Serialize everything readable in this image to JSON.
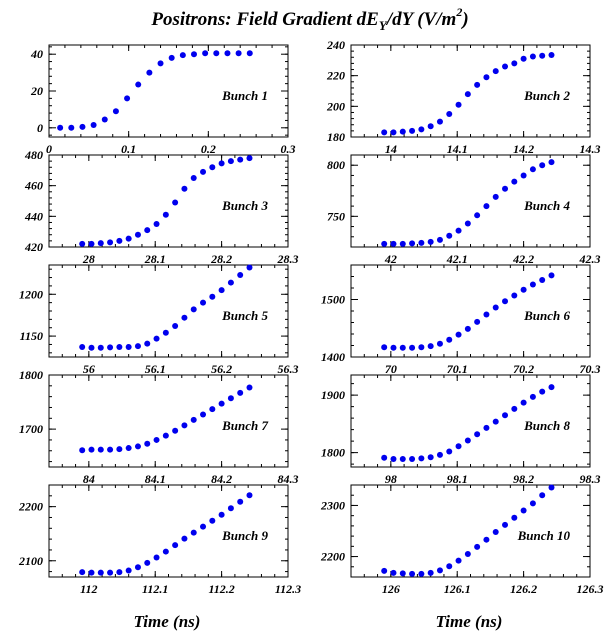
{
  "title_parts": {
    "main": "Positrons: Field Gradient dE",
    "sub": "Y",
    "mid": "/dY (V/m",
    "sup": "2",
    "end": ")"
  },
  "xlabel": "Time (ns)",
  "marker_color": "#0000ee",
  "chart_data": [
    {
      "type": "scatter",
      "label": "Bunch 1",
      "xlim": [
        0,
        0.3
      ],
      "ylim": [
        -5,
        45
      ],
      "xticks": [
        "0",
        "0.1",
        "0.2",
        "0.3"
      ],
      "xtick_values": [
        0,
        0.1,
        0.2,
        0.3
      ],
      "yticks": [
        "0",
        "20",
        "40"
      ],
      "ytick_values": [
        0,
        20,
        40
      ],
      "x": [
        0.014,
        0.028,
        0.042,
        0.056,
        0.07,
        0.084,
        0.098,
        0.112,
        0.126,
        0.14,
        0.154,
        0.168,
        0.182,
        0.196,
        0.21,
        0.224,
        0.238,
        0.252
      ],
      "y": [
        0,
        0,
        0.5,
        1.5,
        4.5,
        9,
        16,
        23.5,
        30,
        35,
        38,
        39.5,
        40,
        40.5,
        40.5,
        40.5,
        40.5,
        40.5
      ]
    },
    {
      "type": "scatter",
      "label": "Bunch 2",
      "xlim": [
        13.94,
        14.3
      ],
      "ylim": [
        180,
        240
      ],
      "xticks": [
        "14",
        "14.1",
        "14.2",
        "14.3"
      ],
      "xtick_values": [
        14,
        14.1,
        14.2,
        14.3
      ],
      "yticks": [
        "180",
        "200",
        "220",
        "240"
      ],
      "ytick_values": [
        180,
        200,
        220,
        240
      ],
      "x": [
        13.99,
        14.004,
        14.018,
        14.032,
        14.046,
        14.06,
        14.074,
        14.088,
        14.102,
        14.116,
        14.13,
        14.144,
        14.158,
        14.172,
        14.186,
        14.2,
        14.214,
        14.228,
        14.242
      ],
      "y": [
        183,
        183,
        183.5,
        184,
        185,
        187,
        190,
        195,
        201,
        208,
        214,
        219,
        223,
        226,
        228,
        231,
        232.5,
        233,
        233.5
      ]
    },
    {
      "type": "scatter",
      "label": "Bunch 3",
      "xlim": [
        27.94,
        28.3
      ],
      "ylim": [
        420,
        480
      ],
      "xticks": [
        "28",
        "28.1",
        "28.2",
        "28.3"
      ],
      "xtick_values": [
        28,
        28.1,
        28.2,
        28.3
      ],
      "yticks": [
        "420",
        "440",
        "460",
        "480"
      ],
      "ytick_values": [
        420,
        440,
        460,
        480
      ],
      "x": [
        27.99,
        28.004,
        28.018,
        28.032,
        28.046,
        28.06,
        28.074,
        28.088,
        28.102,
        28.116,
        28.13,
        28.144,
        28.158,
        28.172,
        28.186,
        28.2,
        28.214,
        28.228,
        28.242
      ],
      "y": [
        422,
        422,
        422.5,
        423,
        424,
        425.5,
        428,
        431,
        435,
        441,
        449,
        458,
        465,
        469,
        472,
        474.5,
        476,
        477,
        478
      ]
    },
    {
      "type": "scatter",
      "label": "Bunch 4",
      "xlim": [
        41.94,
        42.3
      ],
      "ylim": [
        720,
        810
      ],
      "xticks": [
        "42",
        "42.1",
        "42.2",
        "42.3"
      ],
      "xtick_values": [
        42,
        42.1,
        42.2,
        42.3
      ],
      "yticks": [
        "750",
        "800"
      ],
      "ytick_values": [
        750,
        800
      ],
      "x": [
        41.99,
        42.004,
        42.018,
        42.032,
        42.046,
        42.06,
        42.074,
        42.088,
        42.102,
        42.116,
        42.13,
        42.144,
        42.158,
        42.172,
        42.186,
        42.2,
        42.214,
        42.228,
        42.242
      ],
      "y": [
        723,
        723,
        723,
        723.5,
        724,
        725,
        727,
        731,
        736,
        743,
        751,
        760,
        769,
        777,
        784,
        790,
        796,
        800,
        803
      ]
    },
    {
      "type": "scatter",
      "label": "Bunch 5",
      "xlim": [
        55.94,
        56.3
      ],
      "ylim": [
        1125,
        1235
      ],
      "xticks": [
        "56",
        "56.1",
        "56.2",
        "56.3"
      ],
      "xtick_values": [
        56,
        56.1,
        56.2,
        56.3
      ],
      "yticks": [
        "1150",
        "1200"
      ],
      "ytick_values": [
        1150,
        1200
      ],
      "x": [
        55.99,
        56.004,
        56.018,
        56.032,
        56.046,
        56.06,
        56.074,
        56.088,
        56.102,
        56.116,
        56.13,
        56.144,
        56.158,
        56.172,
        56.186,
        56.2,
        56.214,
        56.228,
        56.242
      ],
      "y": [
        1137,
        1136,
        1136,
        1136.5,
        1137,
        1137,
        1138,
        1141,
        1147,
        1154,
        1162,
        1172,
        1182,
        1190,
        1197,
        1205,
        1214,
        1223,
        1232
      ]
    },
    {
      "type": "scatter",
      "label": "Bunch 6",
      "xlim": [
        69.94,
        70.3
      ],
      "ylim": [
        1400,
        1560
      ],
      "xticks": [
        "70",
        "70.1",
        "70.2",
        "70.3"
      ],
      "xtick_values": [
        70,
        70.1,
        70.2,
        70.3
      ],
      "yticks": [
        "1400",
        "1500"
      ],
      "ytick_values": [
        1400,
        1500
      ],
      "x": [
        69.99,
        70.004,
        70.018,
        70.032,
        70.046,
        70.06,
        70.074,
        70.088,
        70.102,
        70.116,
        70.13,
        70.144,
        70.158,
        70.172,
        70.186,
        70.2,
        70.214,
        70.228,
        70.242
      ],
      "y": [
        1417,
        1416,
        1416,
        1416,
        1417,
        1419,
        1423,
        1430,
        1439,
        1449,
        1461,
        1474,
        1486,
        1497,
        1507,
        1517,
        1526,
        1534,
        1542
      ]
    },
    {
      "type": "scatter",
      "label": "Bunch 7",
      "xlim": [
        83.94,
        84.3
      ],
      "ylim": [
        1630,
        1800
      ],
      "xticks": [
        "84",
        "84.1",
        "84.2",
        "84.3"
      ],
      "xtick_values": [
        84,
        84.1,
        84.2,
        84.3
      ],
      "yticks": [
        "1700",
        "1800"
      ],
      "ytick_values": [
        1700,
        1800
      ],
      "x": [
        83.99,
        84.004,
        84.018,
        84.032,
        84.046,
        84.06,
        84.074,
        84.088,
        84.102,
        84.116,
        84.13,
        84.144,
        84.158,
        84.172,
        84.186,
        84.2,
        84.214,
        84.228,
        84.242
      ],
      "y": [
        1661,
        1662,
        1662,
        1662,
        1663,
        1665,
        1668,
        1673,
        1680,
        1688,
        1697,
        1707,
        1717,
        1727,
        1737,
        1747,
        1757,
        1767,
        1777
      ]
    },
    {
      "type": "scatter",
      "label": "Bunch 8",
      "xlim": [
        97.94,
        98.3
      ],
      "ylim": [
        1775,
        1935
      ],
      "xticks": [
        "98",
        "98.1",
        "98.2",
        "98.3"
      ],
      "xtick_values": [
        98,
        98.1,
        98.2,
        98.3
      ],
      "yticks": [
        "1800",
        "1900"
      ],
      "ytick_values": [
        1800,
        1900
      ],
      "x": [
        97.99,
        98.004,
        98.018,
        98.032,
        98.046,
        98.06,
        98.074,
        98.088,
        98.102,
        98.116,
        98.13,
        98.144,
        98.158,
        98.172,
        98.186,
        98.2,
        98.214,
        98.228,
        98.242
      ],
      "y": [
        1791,
        1789,
        1789,
        1789,
        1790,
        1792,
        1796,
        1802,
        1811,
        1821,
        1832,
        1843,
        1854,
        1865,
        1876,
        1887,
        1897,
        1906,
        1914
      ]
    },
    {
      "type": "scatter",
      "label": "Bunch 9",
      "xlim": [
        111.94,
        112.3
      ],
      "ylim": [
        2070,
        2240
      ],
      "xticks": [
        "112",
        "112.1",
        "112.2",
        "112.3"
      ],
      "xtick_values": [
        112,
        112.1,
        112.2,
        112.3
      ],
      "yticks": [
        "2100",
        "2200"
      ],
      "ytick_values": [
        2100,
        2200
      ],
      "x": [
        111.99,
        112.004,
        112.018,
        112.032,
        112.046,
        112.06,
        112.074,
        112.088,
        112.102,
        112.116,
        112.13,
        112.144,
        112.158,
        112.172,
        112.186,
        112.2,
        112.214,
        112.228,
        112.242
      ],
      "y": [
        2079,
        2078,
        2078,
        2078,
        2079,
        2082,
        2088,
        2096,
        2106,
        2117,
        2129,
        2141,
        2152,
        2163,
        2174,
        2185,
        2197,
        2209,
        2221
      ]
    },
    {
      "type": "scatter",
      "label": "Bunch 10",
      "xlim": [
        125.94,
        126.3
      ],
      "ylim": [
        2160,
        2340
      ],
      "xticks": [
        "126",
        "126.1",
        "126.2",
        "126.3"
      ],
      "xtick_values": [
        126,
        126.1,
        126.2,
        126.3
      ],
      "yticks": [
        "2200",
        "2300"
      ],
      "ytick_values": [
        2200,
        2300
      ],
      "x": [
        125.99,
        126.004,
        126.018,
        126.032,
        126.046,
        126.06,
        126.074,
        126.088,
        126.102,
        126.116,
        126.13,
        126.144,
        126.158,
        126.172,
        126.186,
        126.2,
        126.214,
        126.228,
        126.242
      ],
      "y": [
        2172,
        2168,
        2167,
        2166,
        2166,
        2168,
        2173,
        2181,
        2192,
        2205,
        2219,
        2233,
        2248,
        2262,
        2276,
        2290,
        2304,
        2320,
        2335
      ]
    }
  ]
}
